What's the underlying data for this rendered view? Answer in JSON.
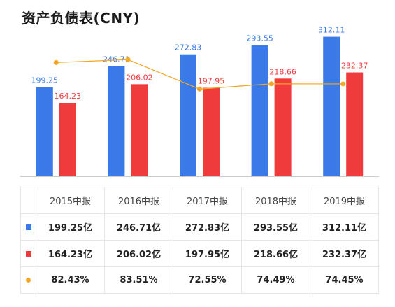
{
  "title": "资产负债表(CNY)",
  "colors": {
    "assets": "#3a7ae8",
    "liabilities": "#ef3b3b",
    "ratio": "#f5a623",
    "axis": "#cccccc"
  },
  "chart_data": {
    "type": "bar",
    "title": "资产负债表(CNY)",
    "categories": [
      "2015中报",
      "2016中报",
      "2017中报",
      "2018中报",
      "2019中报"
    ],
    "series": [
      {
        "name": "",
        "type": "bar",
        "values": [
          199.25,
          246.71,
          272.83,
          293.55,
          312.11
        ],
        "labels": [
          "199.25",
          "246.71",
          "272.83",
          "293.55",
          "312.11"
        ]
      },
      {
        "name": "",
        "type": "bar",
        "values": [
          164.23,
          206.02,
          197.95,
          218.66,
          232.37
        ],
        "labels": [
          "164.23",
          "206.02",
          "197.95",
          "218.66",
          "232.37"
        ]
      },
      {
        "name": "",
        "type": "line",
        "values": [
          82.43,
          83.51,
          72.55,
          74.49,
          74.45
        ]
      }
    ],
    "ylim": [
      0,
      360
    ],
    "grid": false,
    "legend": "none"
  },
  "table": {
    "headers": [
      "2015中报",
      "2016中报",
      "2017中报",
      "2018中报",
      "2019中报"
    ],
    "rows": [
      {
        "marker": "square-icon",
        "color": "#3a7ae8",
        "cells": [
          "199.25亿",
          "246.71亿",
          "272.83亿",
          "293.55亿",
          "312.11亿"
        ]
      },
      {
        "marker": "square-icon",
        "color": "#ef3b3b",
        "cells": [
          "164.23亿",
          "206.02亿",
          "197.95亿",
          "218.66亿",
          "232.37亿"
        ]
      },
      {
        "marker": "dot-icon",
        "color": "#f5a623",
        "cells": [
          "82.43%",
          "83.51%",
          "72.55%",
          "74.49%",
          "74.45%"
        ]
      }
    ]
  }
}
